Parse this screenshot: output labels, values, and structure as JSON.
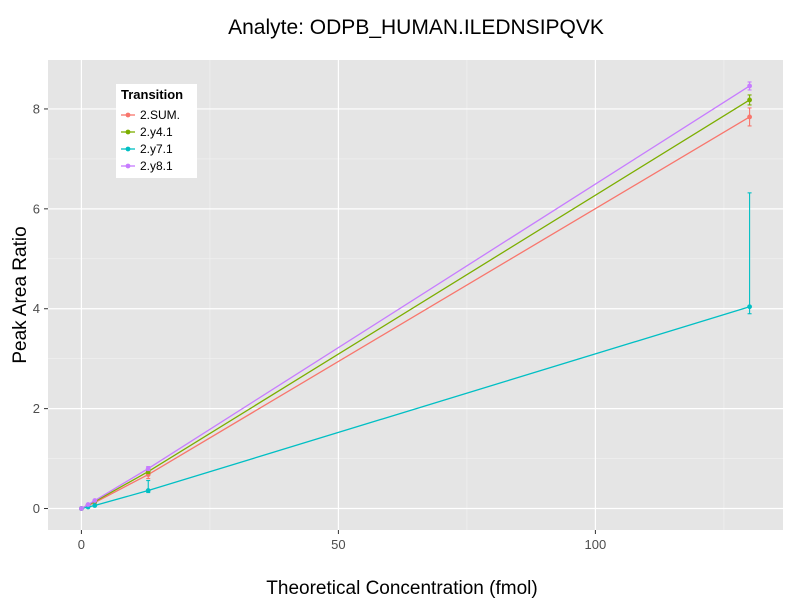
{
  "chart_data": {
    "type": "line",
    "title": "Analyte: ODPB_HUMAN.ILEDNSIPQVK",
    "xlabel": "Theoretical Concentration (fmol)",
    "ylabel": "Peak Area Ratio",
    "xlim": [
      -6.5,
      136.5
    ],
    "ylim": [
      -0.43,
      8.98
    ],
    "x_ticks": [
      0,
      50,
      100
    ],
    "y_ticks": [
      0,
      2,
      4,
      6,
      8
    ],
    "grid": true,
    "legend_title": "Transition",
    "legend_position": "top-left",
    "x": [
      0,
      1.3,
      2.6,
      13,
      130
    ],
    "series": [
      {
        "name": "2.SUM.",
        "color": "#F8766D",
        "values": [
          0.0,
          0.06,
          0.12,
          0.68,
          7.84
        ],
        "error_low": [
          0.0,
          0.05,
          0.1,
          0.6,
          7.66
        ],
        "error_high": [
          0.0,
          0.07,
          0.14,
          0.76,
          8.02
        ]
      },
      {
        "name": "2.y4.1",
        "color": "#7CAE00",
        "values": [
          0.0,
          0.07,
          0.14,
          0.74,
          8.18
        ],
        "error_low": [
          0.0,
          0.06,
          0.12,
          0.7,
          8.08
        ],
        "error_high": [
          0.0,
          0.08,
          0.16,
          0.78,
          8.28
        ]
      },
      {
        "name": "2.y7.1",
        "color": "#00BFC4",
        "values": [
          0.0,
          0.03,
          0.06,
          0.36,
          4.04
        ],
        "error_low": [
          0.0,
          0.02,
          0.05,
          0.32,
          3.9
        ],
        "error_high": [
          0.0,
          0.04,
          0.08,
          0.56,
          6.32
        ]
      },
      {
        "name": "2.y8.1",
        "color": "#C77CFF",
        "values": [
          0.0,
          0.08,
          0.16,
          0.8,
          8.46
        ],
        "error_low": [
          0.0,
          0.07,
          0.14,
          0.76,
          8.38
        ],
        "error_high": [
          0.0,
          0.09,
          0.18,
          0.84,
          8.54
        ]
      }
    ]
  }
}
